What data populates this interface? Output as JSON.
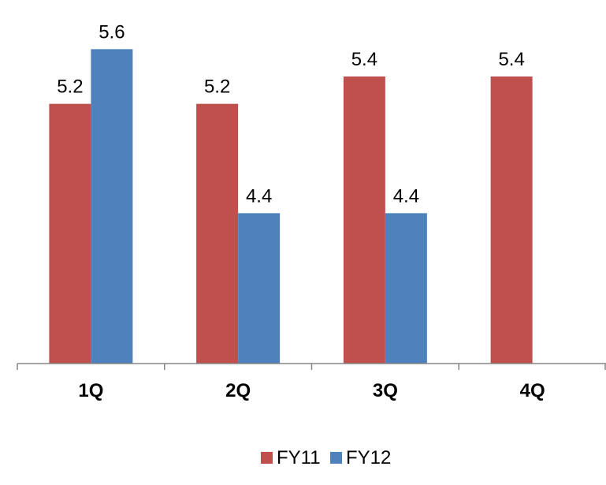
{
  "chart_data": {
    "type": "bar",
    "categories": [
      "1Q",
      "2Q",
      "3Q",
      "4Q"
    ],
    "series": [
      {
        "name": "FY11",
        "color": "#c0504d",
        "values": [
          5.2,
          5.2,
          5.4,
          5.4
        ],
        "labels": [
          "5.2",
          "5.2",
          "5.4",
          "5.4"
        ]
      },
      {
        "name": "FY12",
        "color": "#4f81bd",
        "values": [
          5.6,
          4.4,
          4.4,
          null
        ],
        "labels": [
          "5.6",
          "4.4",
          "4.4",
          ""
        ]
      }
    ],
    "title": "",
    "xlabel": "",
    "ylabel": "",
    "ylim": [
      3.3,
      5.7
    ],
    "grid": false,
    "legend_position": "bottom"
  }
}
